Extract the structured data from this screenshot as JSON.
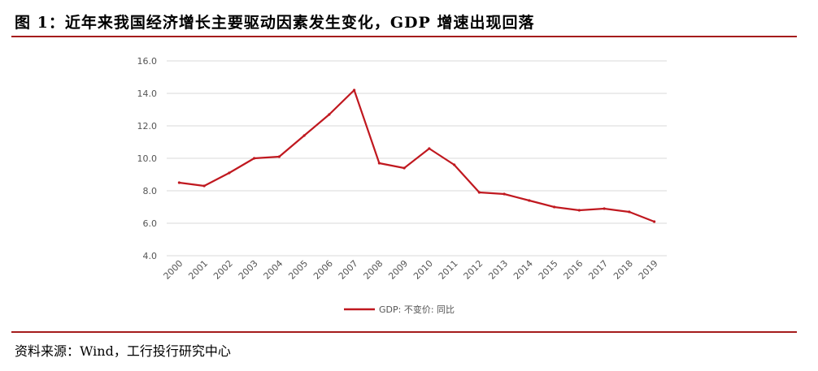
{
  "header": {
    "title": "图 1：近年来我国经济增长主要驱动因素发生变化，GDP 增速出现回落"
  },
  "footer": {
    "source": "资料来源：Wind，工行投行研究中心"
  },
  "colors": {
    "accent": "#a51c1c",
    "series": "#c0181f",
    "grid": "#d9d9d9"
  },
  "chart_data": {
    "type": "line",
    "x": [
      "2000",
      "2001",
      "2002",
      "2003",
      "2004",
      "2005",
      "2006",
      "2007",
      "2008",
      "2009",
      "2010",
      "2011",
      "2012",
      "2013",
      "2014",
      "2015",
      "2016",
      "2017",
      "2018",
      "2019"
    ],
    "series": [
      {
        "name": "GDP: 不变价: 同比",
        "values": [
          8.5,
          8.3,
          9.1,
          10.0,
          10.1,
          11.4,
          12.7,
          14.2,
          9.7,
          9.4,
          10.6,
          9.6,
          7.9,
          7.8,
          7.4,
          7.0,
          6.8,
          6.9,
          6.7,
          6.1
        ]
      }
    ],
    "yticks": [
      "4.0",
      "6.0",
      "8.0",
      "10.0",
      "12.0",
      "14.0",
      "16.0"
    ],
    "ylim": [
      4,
      16
    ],
    "grid": true,
    "legend": "bottom-center"
  }
}
